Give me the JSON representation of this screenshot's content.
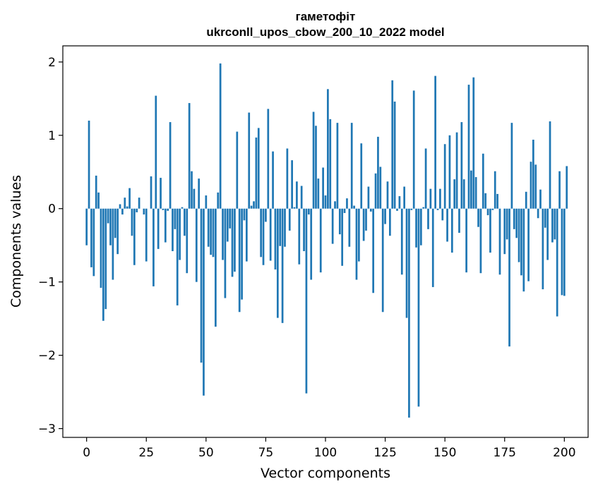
{
  "chart_data": {
    "type": "bar",
    "title": "гаметофіт",
    "subtitle": "ukrconll_upos_cbow_200_10_2022 model",
    "xlabel": "Vector components",
    "ylabel": "Components values",
    "xlim": [
      -9.95,
      209.95
    ],
    "ylim": [
      -3.12,
      2.22
    ],
    "xticks": [
      0,
      25,
      50,
      75,
      100,
      125,
      150,
      175,
      200
    ],
    "xtick_labels": [
      "0",
      "25",
      "50",
      "75",
      "100",
      "125",
      "150",
      "175",
      "200"
    ],
    "yticks": [
      2,
      1,
      0,
      -1,
      -2,
      -3
    ],
    "ytick_labels": [
      "2",
      "1",
      "0",
      "−1",
      "−2",
      "−3"
    ],
    "bar_color": "#1f77b4",
    "grid": false,
    "values": [
      -0.5,
      1.2,
      -0.8,
      -0.92,
      0.45,
      0.22,
      -1.08,
      -1.53,
      -1.37,
      -0.2,
      -0.5,
      -0.97,
      -0.4,
      -0.62,
      0.06,
      -0.08,
      0.15,
      0.03,
      0.28,
      -0.37,
      -0.77,
      -0.05,
      0.15,
      0.0,
      -0.08,
      -0.72,
      0.0,
      0.44,
      -1.06,
      1.54,
      -0.55,
      0.42,
      -0.02,
      -0.46,
      -0.03,
      1.18,
      -0.58,
      -0.28,
      -1.32,
      -0.7,
      0.02,
      -0.37,
      -0.88,
      1.44,
      0.51,
      0.27,
      -1.0,
      0.41,
      -2.1,
      -2.55,
      0.18,
      -0.52,
      -0.63,
      -0.66,
      -1.61,
      0.22,
      1.98,
      -0.7,
      -1.22,
      -0.45,
      -0.27,
      -0.93,
      -0.86,
      1.05,
      -1.41,
      -1.24,
      -0.16,
      -0.72,
      1.31,
      0.04,
      0.1,
      0.97,
      1.1,
      -0.66,
      -0.77,
      -0.18,
      1.36,
      -0.71,
      0.78,
      -0.83,
      -1.49,
      -0.51,
      -1.56,
      -0.52,
      0.82,
      -0.3,
      0.66,
      0.02,
      0.37,
      -0.76,
      0.31,
      -0.58,
      -2.52,
      -0.08,
      -0.97,
      1.32,
      1.13,
      0.41,
      -0.87,
      0.56,
      0.18,
      1.63,
      1.22,
      -0.48,
      0.1,
      1.17,
      -0.35,
      -0.78,
      -0.06,
      0.14,
      -0.52,
      1.17,
      0.04,
      -0.97,
      -0.72,
      0.89,
      -0.44,
      -0.3,
      0.3,
      -0.04,
      -1.15,
      0.48,
      0.98,
      0.57,
      -1.41,
      -0.21,
      0.37,
      -0.37,
      1.75,
      1.46,
      -0.03,
      0.17,
      -0.9,
      0.3,
      -1.49,
      -2.85,
      -0.02,
      1.61,
      -0.53,
      -2.7,
      -0.5,
      0.02,
      0.82,
      -0.28,
      0.27,
      -1.07,
      1.81,
      -0.02,
      0.27,
      -0.16,
      0.88,
      -0.45,
      1.0,
      -0.6,
      0.4,
      1.04,
      -0.33,
      1.18,
      0.4,
      -0.87,
      1.69,
      0.52,
      1.79,
      0.43,
      -0.25,
      -0.88,
      0.75,
      0.21,
      -0.09,
      -0.6,
      -0.02,
      0.51,
      0.2,
      -0.9,
      0.0,
      -0.62,
      -0.42,
      -1.88,
      1.17,
      -0.28,
      -0.4,
      -0.73,
      -0.91,
      -1.13,
      0.23,
      -0.99,
      0.64,
      0.94,
      0.6,
      -0.13,
      0.26,
      -1.1,
      -0.26,
      -0.7,
      1.19,
      -0.46,
      -0.42,
      -1.47,
      0.51,
      -1.18,
      -1.19,
      0.58
    ]
  }
}
